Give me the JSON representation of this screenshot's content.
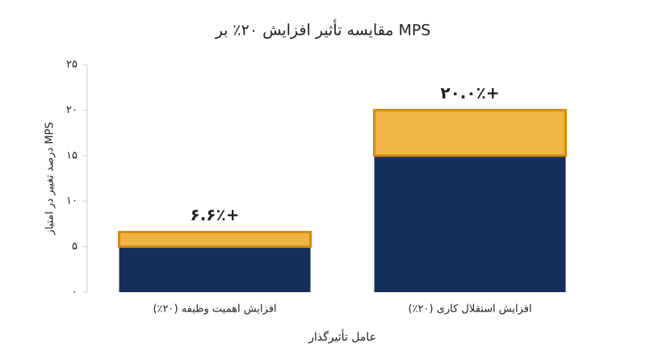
{
  "chart_data": {
    "type": "stacked_bar",
    "title": "مقایسه تأثیر افزایش ۲۰٪ بر MPS",
    "y_label": "درصد تغییر در امتیاز MPS",
    "x_label": "عامل تأثیرگذار",
    "categories": [
      "افزایش اهمیت وظیفه (۲۰٪)",
      "افزایش استقلال کاری (۲۰٪)"
    ],
    "series": [
      {
        "color": "#14305a",
        "values": [
          5,
          15
        ]
      },
      {
        "color": "#f0b445",
        "edge_color": "#d58a0e",
        "values": [
          1.6,
          5
        ]
      }
    ],
    "totals": {
      "values": [
        6.6,
        20.0
      ],
      "labels": [
        "+۶.۶٪",
        "+۲۰.۰٪"
      ]
    },
    "ylim": [
      0,
      25
    ],
    "yticks": [
      {
        "value": 0,
        "label": "۰"
      },
      {
        "value": 5,
        "label": "۵"
      },
      {
        "value": 10,
        "label": "۱۰"
      },
      {
        "value": 15,
        "label": "۱۵"
      },
      {
        "value": 20,
        "label": "۲۰"
      },
      {
        "value": 25,
        "label": "۲۵"
      }
    ]
  }
}
